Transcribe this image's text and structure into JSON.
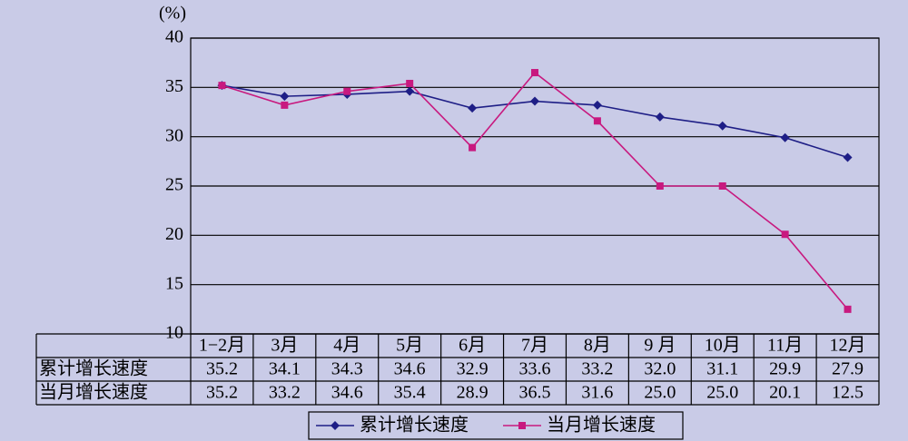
{
  "chart_data": {
    "type": "line",
    "y_label": "(%)",
    "categories": [
      "1−2月",
      "3月",
      "4月",
      "5月",
      "6月",
      "7月",
      "8月",
      "9 月",
      "10月",
      "11月",
      "12月"
    ],
    "series": [
      {
        "name": "累计增长速度",
        "color": "#1e1e86",
        "marker": "diamond",
        "values": [
          35.2,
          34.1,
          34.3,
          34.6,
          32.9,
          33.6,
          33.2,
          32.0,
          31.1,
          29.9,
          27.9
        ],
        "value_labels": [
          "35.2",
          "34.1",
          "34.3",
          "34.6",
          "32.9",
          "33.6",
          "33.2",
          "32.0",
          "31.1",
          "29.9",
          "27.9"
        ]
      },
      {
        "name": "当月增长速度",
        "color": "#c8197f",
        "marker": "square",
        "values": [
          35.2,
          33.2,
          34.6,
          35.4,
          28.9,
          36.5,
          31.6,
          25.0,
          25.0,
          20.1,
          12.5
        ],
        "value_labels": [
          "35.2",
          "33.2",
          "34.6",
          "35.4",
          "28.9",
          "36.5",
          "31.6",
          "25.0",
          "25.0",
          "20.1",
          "12.5"
        ]
      }
    ],
    "ylim": [
      10,
      40
    ],
    "yticks": [
      10,
      15,
      20,
      25,
      30,
      35,
      40
    ],
    "grid": true
  }
}
